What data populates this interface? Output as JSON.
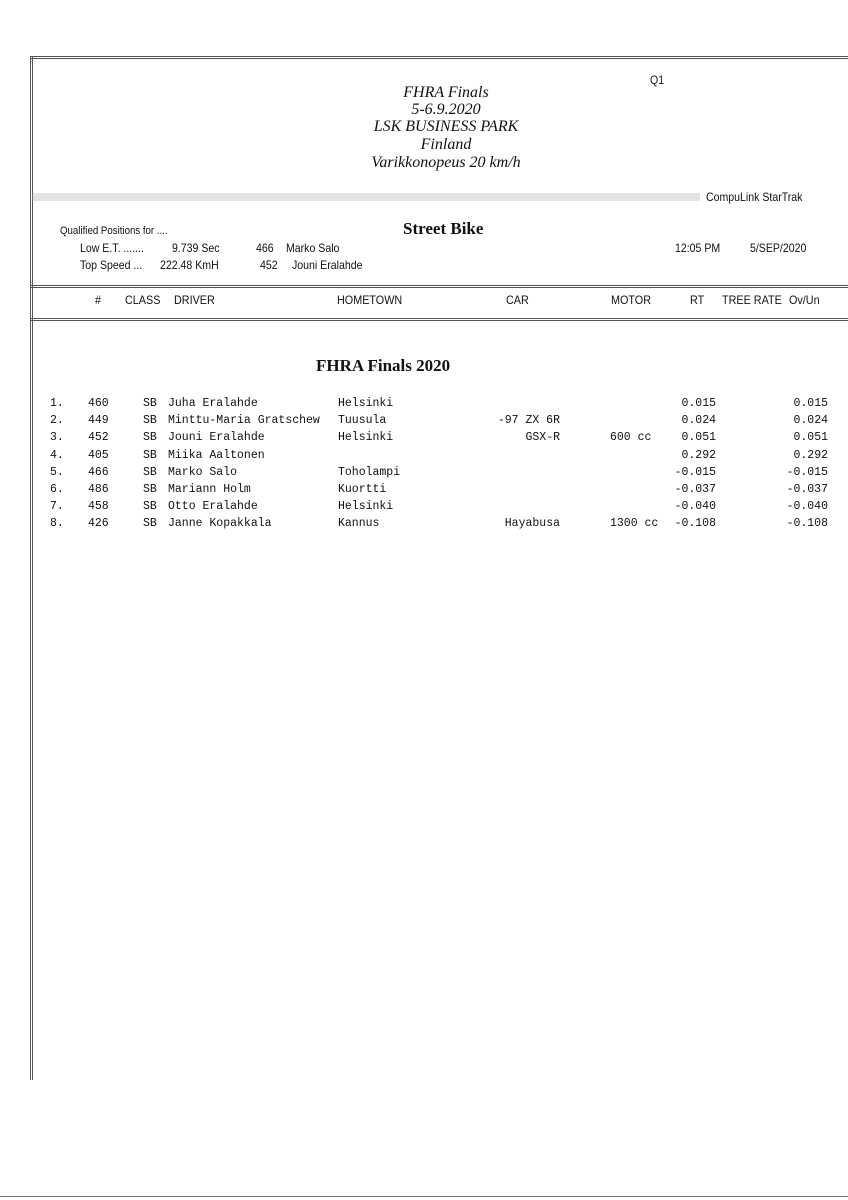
{
  "round": "Q1",
  "event": {
    "lines": [
      "FHRA Finals",
      "5-6.9.2020",
      "LSK BUSINESS PARK",
      "Finland",
      "Varikkonopeus 20 km/h"
    ]
  },
  "system": "CompuLink  StarTrak",
  "qualified": {
    "label": "Qualified Positions for ....",
    "class_title": "Street Bike",
    "low_et_label": "Low E.T. .......",
    "low_et_value": "9.739  Sec",
    "low_et_num": "466",
    "low_et_driver": "Marko Salo",
    "top_speed_label": "Top Speed ...",
    "top_speed_value": "222.48  KmH",
    "top_speed_num": "452",
    "top_speed_driver": "Jouni Eralahde",
    "time": "12:05 PM",
    "date": "5/SEP/2020"
  },
  "columns": {
    "num": "#",
    "class": "CLASS",
    "driver": "DRIVER",
    "hometown": "HOMETOWN",
    "car": "CAR",
    "motor": "MOTOR",
    "rt": "RT",
    "tree_rate": "TREE RATE",
    "ovun": "Ov/Un"
  },
  "section_title": "FHRA Finals 2020",
  "rows": [
    {
      "pos": "1.",
      "num": "460",
      "class": "SB",
      "driver": "Juha Eralahde",
      "hometown": "Helsinki",
      "car": "",
      "motor": "",
      "rt": "0.015",
      "ovun": "0.015"
    },
    {
      "pos": "2.",
      "num": "449",
      "class": "SB",
      "driver": "Minttu-Maria Gratschew",
      "hometown": "Tuusula",
      "car": "-97 ZX 6R",
      "motor": "",
      "rt": "0.024",
      "ovun": "0.024"
    },
    {
      "pos": "3.",
      "num": "452",
      "class": "SB",
      "driver": "Jouni Eralahde",
      "hometown": "Helsinki",
      "car": "GSX-R",
      "motor": "600 cc",
      "rt": "0.051",
      "ovun": "0.051"
    },
    {
      "pos": "4.",
      "num": "405",
      "class": "SB",
      "driver": "Miika Aaltonen",
      "hometown": "",
      "car": "",
      "motor": "",
      "rt": "0.292",
      "ovun": "0.292"
    },
    {
      "pos": "5.",
      "num": "466",
      "class": "SB",
      "driver": "Marko Salo",
      "hometown": "Toholampi",
      "car": "",
      "motor": "",
      "rt": "-0.015",
      "ovun": "-0.015"
    },
    {
      "pos": "6.",
      "num": "486",
      "class": "SB",
      "driver": "Mariann Holm",
      "hometown": "Kuortti",
      "car": "",
      "motor": "",
      "rt": "-0.037",
      "ovun": "-0.037"
    },
    {
      "pos": "7.",
      "num": "458",
      "class": "SB",
      "driver": "Otto Eralahde",
      "hometown": "Helsinki",
      "car": "",
      "motor": "",
      "rt": "-0.040",
      "ovun": "-0.040"
    },
    {
      "pos": "8.",
      "num": "426",
      "class": "SB",
      "driver": "Janne Kopakkala",
      "hometown": "Kannus",
      "car": "Hayabusa",
      "motor": "1300 cc",
      "rt": "-0.108",
      "ovun": "-0.108"
    }
  ]
}
